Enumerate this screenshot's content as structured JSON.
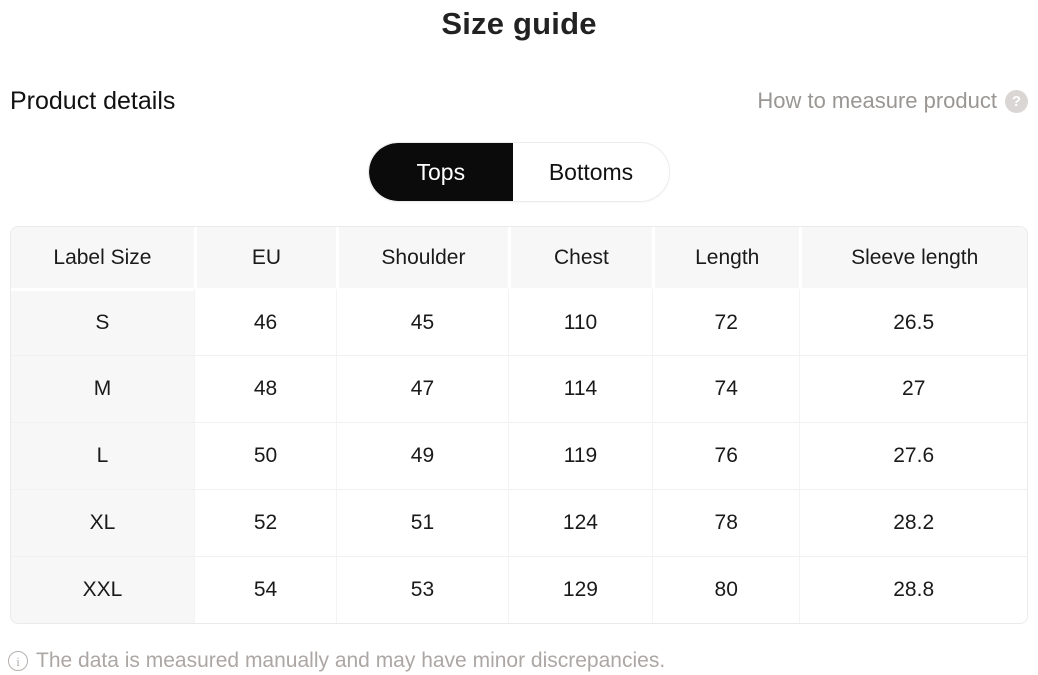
{
  "page": {
    "title": "Size guide"
  },
  "header": {
    "product_details_label": "Product details",
    "how_to_measure_label": "How to measure product",
    "help_icon_glyph": "?"
  },
  "tabs": [
    {
      "label": "Tops",
      "active": true
    },
    {
      "label": "Bottoms",
      "active": false
    }
  ],
  "table": {
    "columns": [
      "Label Size",
      "EU",
      "Shoulder",
      "Chest",
      "Length",
      "Sleeve length"
    ],
    "rows": [
      [
        "S",
        "46",
        "45",
        "110",
        "72",
        "26.5"
      ],
      [
        "M",
        "48",
        "47",
        "114",
        "74",
        "27"
      ],
      [
        "L",
        "50",
        "49",
        "119",
        "76",
        "27.6"
      ],
      [
        "XL",
        "52",
        "51",
        "124",
        "78",
        "28.2"
      ],
      [
        "XXL",
        "54",
        "53",
        "129",
        "80",
        "28.8"
      ]
    ]
  },
  "footer": {
    "note": "The data is measured manually and may have minor discrepancies.",
    "info_icon_glyph": "i"
  },
  "colors": {
    "active_tab_bg": "#0b0b0b",
    "active_tab_text": "#ffffff",
    "table_header_bg": "#f7f7f7",
    "muted_text": "#999693",
    "footer_text": "#aca7a4"
  }
}
